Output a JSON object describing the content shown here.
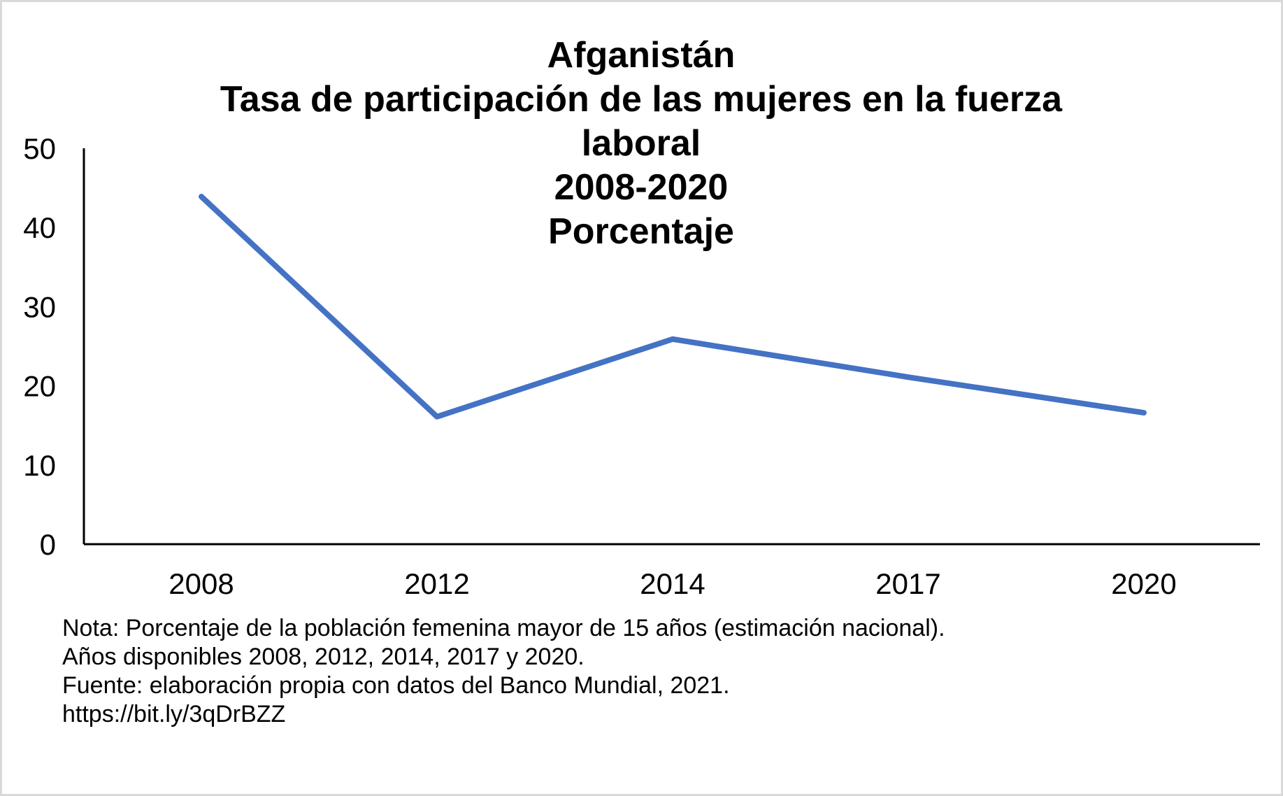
{
  "chart_data": {
    "type": "line",
    "title": [
      "Afganistán",
      "Tasa de participación de las mujeres en la fuerza",
      "laboral",
      "2008-2020",
      "Porcentaje"
    ],
    "categories": [
      "2008",
      "2012",
      "2014",
      "2017",
      "2020"
    ],
    "series": [
      {
        "values": [
          43.9,
          16.1,
          25.9,
          21.1,
          16.6
        ],
        "color": "#4472c4"
      }
    ],
    "ylim": [
      0,
      50
    ],
    "yticks": [
      0,
      10,
      20,
      30,
      40,
      50
    ],
    "xlabel": "",
    "ylabel": "",
    "grid": false,
    "legend": "none"
  },
  "notes": [
    "Nota: Porcentaje de la población femenina mayor de 15 años (estimación nacional).",
    "Años disponibles 2008, 2012, 2014, 2017 y 2020.",
    "Fuente: elaboración propia con datos del Banco Mundial, 2021.",
    "https://bit.ly/3qDrBZZ"
  ]
}
